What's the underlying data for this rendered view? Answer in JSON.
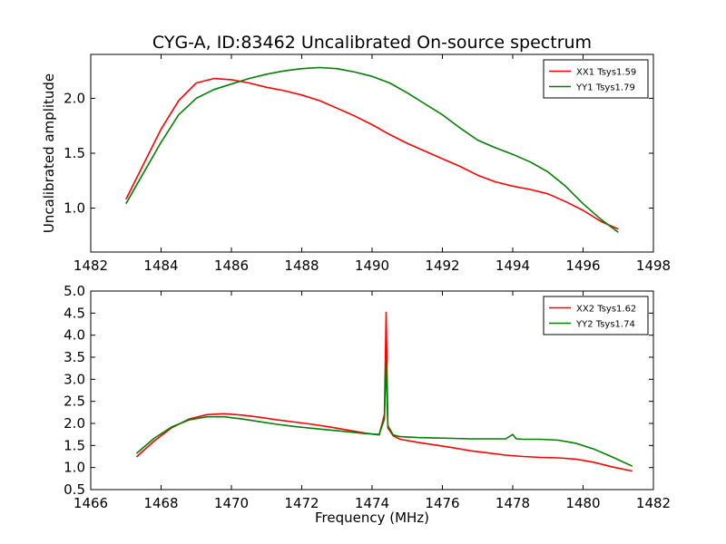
{
  "figure": {
    "title": "CYG-A, ID:83462 Uncalibrated On-source spectrum"
  },
  "chart_data": [
    {
      "type": "line",
      "title": "CYG-A, ID:83462 Uncalibrated On-source spectrum",
      "xlabel": "",
      "ylabel": "Uncalibrated amplitude",
      "xlim": [
        1482,
        1498
      ],
      "ylim": [
        0.6,
        2.4
      ],
      "xticks": [
        1482,
        1484,
        1486,
        1488,
        1490,
        1492,
        1494,
        1496,
        1498
      ],
      "xtick_labels": [
        "1482",
        "1484",
        "1486",
        "1488",
        "1490",
        "1492",
        "1494",
        "1496",
        "1498"
      ],
      "yticks": [
        1.0,
        1.5,
        2.0
      ],
      "ytick_labels": [
        "1.0",
        "1.5",
        "2.0"
      ],
      "grid": false,
      "legend_position": "top-right",
      "series": [
        {
          "name": "XX1 Tsys1.59",
          "color": "#ff0000",
          "x": [
            1483.0,
            1483.5,
            1484.0,
            1484.5,
            1485.0,
            1485.5,
            1486.0,
            1486.5,
            1487.0,
            1487.5,
            1488.0,
            1488.5,
            1489.0,
            1489.5,
            1490.0,
            1490.5,
            1491.0,
            1491.5,
            1492.0,
            1492.5,
            1493.0,
            1493.5,
            1494.0,
            1494.5,
            1495.0,
            1495.5,
            1496.0,
            1496.5,
            1497.0
          ],
          "y": [
            1.08,
            1.4,
            1.72,
            1.98,
            2.14,
            2.18,
            2.17,
            2.14,
            2.1,
            2.07,
            2.03,
            1.98,
            1.91,
            1.84,
            1.76,
            1.67,
            1.59,
            1.52,
            1.45,
            1.38,
            1.3,
            1.24,
            1.2,
            1.17,
            1.13,
            1.06,
            0.98,
            0.88,
            0.81
          ]
        },
        {
          "name": "YY1 Tsys1.79",
          "color": "#008000",
          "x": [
            1483.0,
            1483.5,
            1484.0,
            1484.5,
            1485.0,
            1485.5,
            1486.0,
            1486.5,
            1487.0,
            1487.5,
            1488.0,
            1488.5,
            1489.0,
            1489.5,
            1490.0,
            1490.5,
            1491.0,
            1491.5,
            1492.0,
            1492.5,
            1493.0,
            1493.5,
            1494.0,
            1494.5,
            1495.0,
            1495.5,
            1496.0,
            1496.5,
            1497.0
          ],
          "y": [
            1.04,
            1.32,
            1.6,
            1.85,
            2.0,
            2.08,
            2.13,
            2.18,
            2.22,
            2.25,
            2.27,
            2.28,
            2.27,
            2.24,
            2.2,
            2.14,
            2.05,
            1.95,
            1.85,
            1.73,
            1.62,
            1.55,
            1.49,
            1.42,
            1.33,
            1.2,
            1.04,
            0.9,
            0.78
          ]
        }
      ]
    },
    {
      "type": "line",
      "title": "",
      "xlabel": "Frequency (MHz)",
      "ylabel": "",
      "xlim": [
        1466,
        1482
      ],
      "ylim": [
        0.5,
        5.0
      ],
      "xticks": [
        1466,
        1468,
        1470,
        1472,
        1474,
        1476,
        1478,
        1480,
        1482
      ],
      "xtick_labels": [
        "1466",
        "1468",
        "1470",
        "1472",
        "1474",
        "1476",
        "1478",
        "1480",
        "1482"
      ],
      "yticks": [
        0.5,
        1.0,
        1.5,
        2.0,
        2.5,
        3.0,
        3.5,
        4.0,
        4.5,
        5.0
      ],
      "ytick_labels": [
        "0.5",
        "1.0",
        "1.5",
        "2.0",
        "2.5",
        "3.0",
        "3.5",
        "4.0",
        "4.5",
        "5.0"
      ],
      "grid": false,
      "legend_position": "top-right",
      "series": [
        {
          "name": "XX2 Tsys1.62",
          "color": "#ff0000",
          "x": [
            1467.3,
            1467.8,
            1468.3,
            1468.8,
            1469.3,
            1469.8,
            1470.3,
            1470.8,
            1471.3,
            1471.8,
            1472.3,
            1472.8,
            1473.3,
            1473.8,
            1474.2,
            1474.35,
            1474.4,
            1474.45,
            1474.6,
            1474.8,
            1475.3,
            1475.8,
            1476.3,
            1476.8,
            1477.3,
            1477.8,
            1478.3,
            1478.8,
            1479.3,
            1479.8,
            1480.3,
            1480.8,
            1481.4
          ],
          "y": [
            1.24,
            1.6,
            1.9,
            2.1,
            2.2,
            2.22,
            2.19,
            2.14,
            2.08,
            2.03,
            1.98,
            1.92,
            1.85,
            1.78,
            1.74,
            2.2,
            4.52,
            1.9,
            1.72,
            1.64,
            1.57,
            1.51,
            1.45,
            1.38,
            1.33,
            1.28,
            1.25,
            1.23,
            1.22,
            1.19,
            1.12,
            1.02,
            0.92
          ]
        },
        {
          "name": "YY2 Tsys1.74",
          "color": "#008000",
          "x": [
            1467.3,
            1467.8,
            1468.3,
            1468.8,
            1469.3,
            1469.8,
            1470.3,
            1470.8,
            1471.3,
            1471.8,
            1472.3,
            1472.8,
            1473.3,
            1473.8,
            1474.2,
            1474.35,
            1474.4,
            1474.45,
            1474.6,
            1474.8,
            1475.3,
            1475.8,
            1476.3,
            1476.8,
            1477.3,
            1477.8,
            1478.0,
            1478.1,
            1478.3,
            1478.8,
            1479.3,
            1479.8,
            1480.3,
            1480.8,
            1481.4
          ],
          "y": [
            1.32,
            1.66,
            1.92,
            2.08,
            2.15,
            2.15,
            2.1,
            2.04,
            1.98,
            1.93,
            1.89,
            1.85,
            1.81,
            1.77,
            1.75,
            2.1,
            3.4,
            1.95,
            1.74,
            1.7,
            1.68,
            1.67,
            1.66,
            1.65,
            1.65,
            1.65,
            1.75,
            1.65,
            1.64,
            1.64,
            1.62,
            1.55,
            1.42,
            1.25,
            1.03
          ]
        }
      ]
    }
  ]
}
